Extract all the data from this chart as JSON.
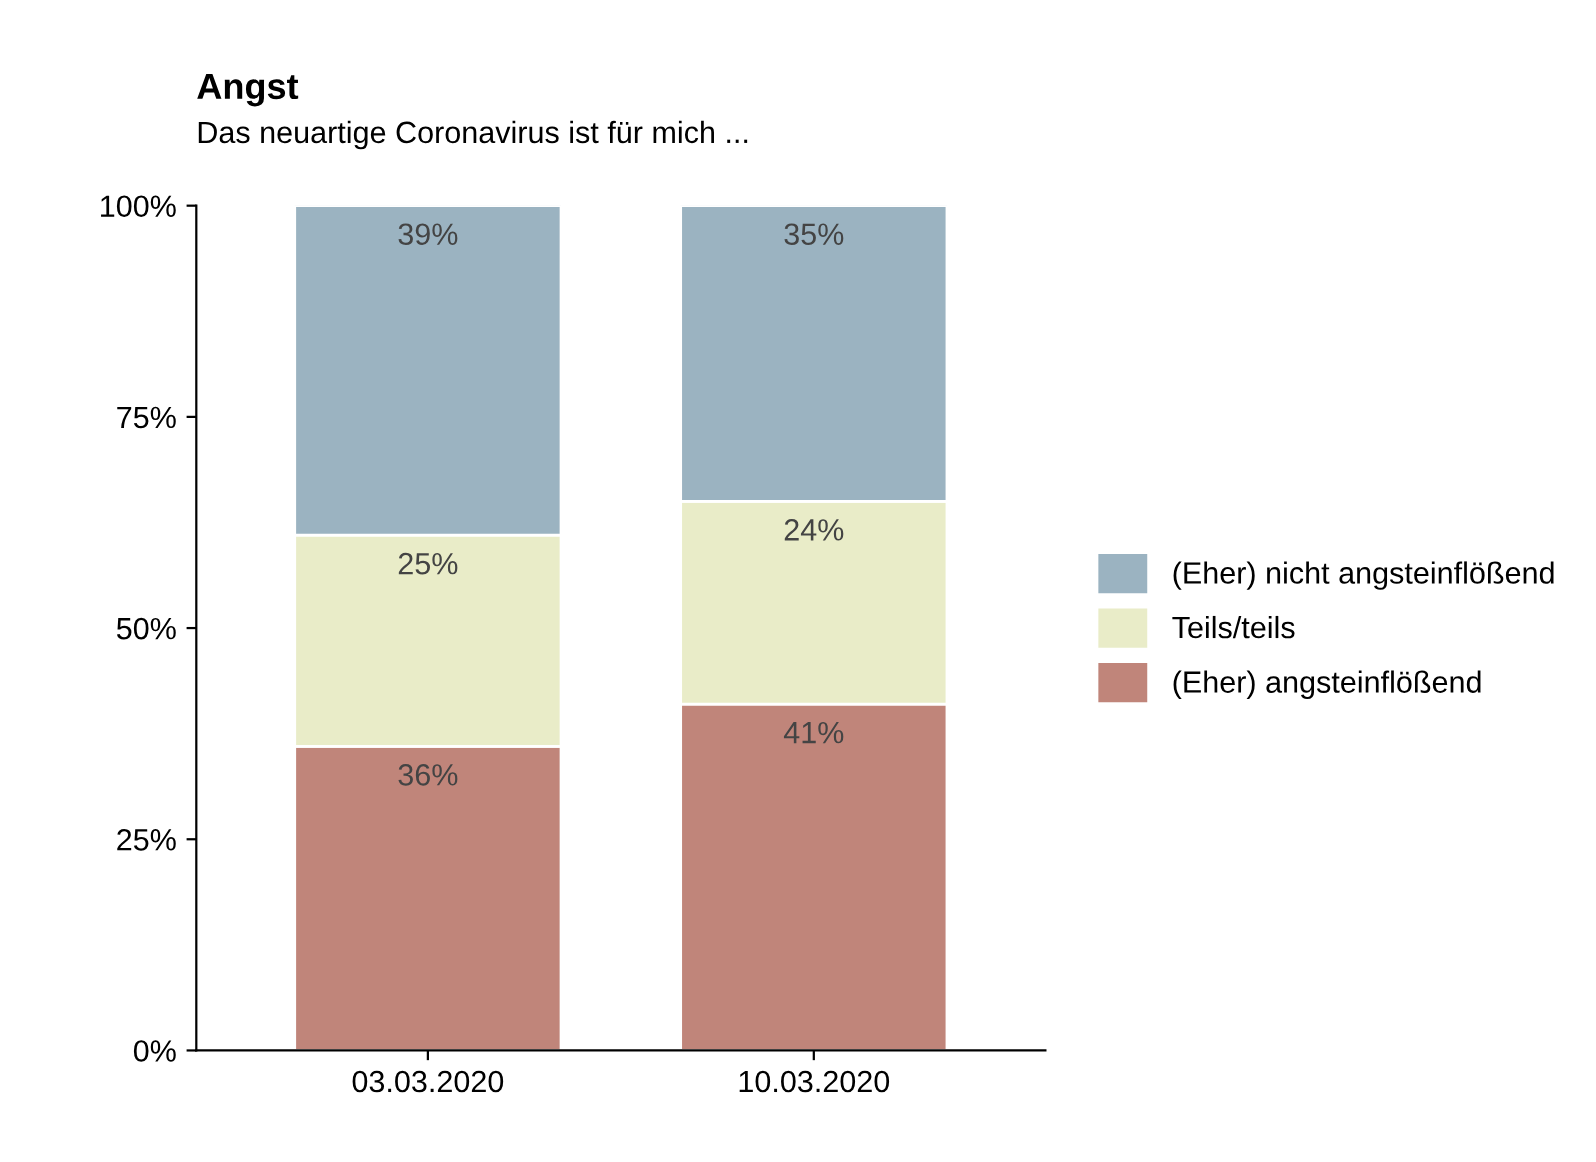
{
  "chart_data": {
    "type": "bar",
    "stacked": true,
    "title": "Angst",
    "subtitle": "Das neuartige Coronavirus ist für mich ...",
    "categories": [
      "03.03.2020",
      "10.03.2020"
    ],
    "series": [
      {
        "name": "(Eher) angsteinflößend",
        "color": "#c0857a",
        "values": [
          36,
          41
        ],
        "value_labels": [
          "36%",
          "41%"
        ]
      },
      {
        "name": "Teils/teils",
        "color": "#e9ecc8",
        "values": [
          25,
          24
        ],
        "value_labels": [
          "25%",
          "24%"
        ]
      },
      {
        "name": "(Eher) nicht angsteinflößend",
        "color": "#9bb3c1",
        "values": [
          39,
          35
        ],
        "value_labels": [
          "39%",
          "35%"
        ]
      }
    ],
    "ylim": [
      0,
      100
    ],
    "yticks": [
      {
        "value": 0,
        "label": "0%"
      },
      {
        "value": 25,
        "label": "25%"
      },
      {
        "value": 50,
        "label": "50%"
      },
      {
        "value": 75,
        "label": "75%"
      },
      {
        "value": 100,
        "label": "100%"
      }
    ],
    "grid": false,
    "legend": "right"
  }
}
